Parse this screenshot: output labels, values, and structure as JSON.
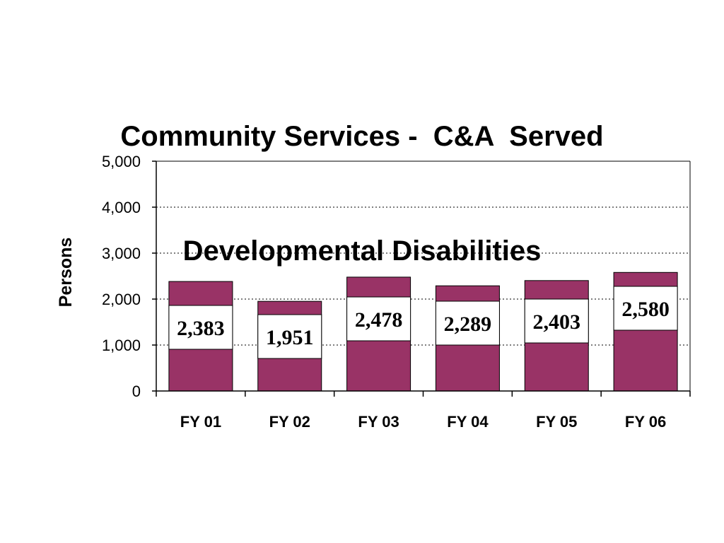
{
  "chart_data": {
    "type": "bar",
    "title_line1": "Community Services -  C&A  Served",
    "title_line2": "Developmental Disabilities",
    "xlabel": "",
    "ylabel": "Persons",
    "categories": [
      "FY 01",
      "FY 02",
      "FY 03",
      "FY 04",
      "FY 05",
      "FY 06"
    ],
    "values": [
      2383,
      1951,
      2478,
      2289,
      2403,
      2580
    ],
    "data_labels": [
      "2,383",
      "1,951",
      "2,478",
      "2,289",
      "2,403",
      "2,580"
    ],
    "ylim": [
      0,
      5000
    ],
    "yticks": [
      0,
      1000,
      2000,
      3000,
      4000,
      5000
    ],
    "ytick_labels": [
      "0",
      "1,000",
      "2,000",
      "3,000",
      "4,000",
      "5,000"
    ],
    "grid": "horizontal dotted",
    "legend": "none",
    "bar_color": "#993366"
  }
}
